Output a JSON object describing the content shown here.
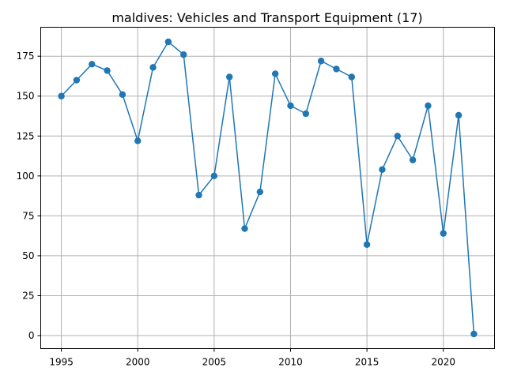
{
  "chart_data": {
    "type": "line",
    "title": "maldives: Vehicles and Transport Equipment (17)",
    "xlabel": "",
    "ylabel": "",
    "x": [
      1995,
      1996,
      1997,
      1998,
      1999,
      2000,
      2001,
      2002,
      2003,
      2004,
      2005,
      2006,
      2007,
      2008,
      2009,
      2010,
      2011,
      2012,
      2013,
      2014,
      2015,
      2016,
      2017,
      2018,
      2019,
      2020,
      2021,
      2022
    ],
    "series": [
      {
        "values": [
          150,
          160,
          170,
          166,
          151,
          122,
          168,
          184,
          176,
          88,
          100,
          162,
          67,
          90,
          164,
          144,
          139,
          172,
          167,
          162,
          57,
          104,
          125,
          110,
          144,
          64,
          138,
          1
        ]
      }
    ],
    "xlim": [
      1993.65,
      2023.35
    ],
    "ylim": [
      -8.15,
      193.15
    ],
    "xticks": [
      1995,
      2000,
      2005,
      2010,
      2015,
      2020
    ],
    "yticks": [
      0,
      25,
      50,
      75,
      100,
      125,
      150,
      175
    ],
    "grid": true,
    "line_color": "#1f77b4",
    "marker": "circle"
  }
}
